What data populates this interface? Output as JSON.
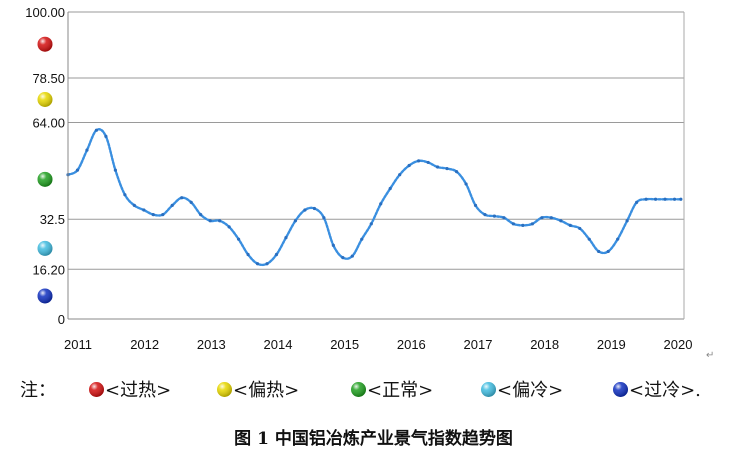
{
  "chart_data": {
    "type": "line",
    "title": "",
    "xlabel": "",
    "ylabel": "",
    "x_ticks": [
      "2011",
      "2012",
      "2013",
      "2014",
      "2015",
      "2016",
      "2017",
      "2018",
      "2019",
      "2020"
    ],
    "y_ticks": [
      {
        "value": 0,
        "label": "0"
      },
      {
        "value": 16.2,
        "label": "16.20"
      },
      {
        "value": 32.5,
        "label": "32.5"
      },
      {
        "value": 64.0,
        "label": "64.00"
      },
      {
        "value": 78.5,
        "label": "78.50"
      },
      {
        "value": 100.0,
        "label": "100.00"
      }
    ],
    "ylim": [
      0,
      100
    ],
    "xlim": [
      2011.0,
      2020.75
    ],
    "grid": true,
    "series": [
      {
        "name": "",
        "color": "#3A8FE0",
        "x": [
          2011.0,
          2011.15,
          2011.3,
          2011.45,
          2011.6,
          2011.75,
          2011.9,
          2012.05,
          2012.2,
          2012.35,
          2012.5,
          2012.65,
          2012.8,
          2012.95,
          2013.1,
          2013.25,
          2013.4,
          2013.55,
          2013.7,
          2013.85,
          2014.0,
          2014.15,
          2014.3,
          2014.45,
          2014.6,
          2014.75,
          2014.9,
          2015.05,
          2015.2,
          2015.35,
          2015.5,
          2015.65,
          2015.8,
          2015.95,
          2016.1,
          2016.25,
          2016.4,
          2016.55,
          2016.7,
          2016.85,
          2017.0,
          2017.15,
          2017.3,
          2017.45,
          2017.6,
          2017.75,
          2017.9,
          2018.05,
          2018.2,
          2018.35,
          2018.5,
          2018.65,
          2018.8,
          2018.95,
          2019.1,
          2019.25,
          2019.4,
          2019.55,
          2019.7,
          2019.85,
          2020.0,
          2020.15,
          2020.3,
          2020.45,
          2020.6,
          2020.7
        ],
        "values": [
          47.0,
          48.5,
          55.0,
          61.5,
          59.5,
          48.5,
          40.5,
          37.0,
          35.5,
          34.0,
          34.0,
          37.0,
          39.5,
          38.0,
          34.0,
          32.0,
          32.0,
          30.0,
          26.0,
          21.0,
          18.0,
          18.0,
          21.0,
          26.5,
          32.0,
          35.5,
          36.0,
          33.0,
          24.0,
          20.0,
          20.5,
          26.0,
          31.0,
          37.5,
          42.5,
          47.0,
          50.0,
          51.5,
          51.0,
          49.5,
          49.0,
          48.0,
          44.0,
          37.0,
          34.0,
          33.5,
          33.0,
          31.0,
          30.5,
          31.0,
          33.0,
          33.0,
          32.0,
          30.5,
          29.5,
          26.0,
          22.0,
          22.0,
          26.0,
          32.0,
          38.0,
          39.0,
          39.0,
          39.0,
          39.0,
          39.0
        ]
      }
    ],
    "markers": [
      {
        "color": "#D41010",
        "y": 89.5
      },
      {
        "color": "#E8D800",
        "y": 71.5
      },
      {
        "color": "#20A020",
        "y": 45.5
      },
      {
        "color": "#40BCE0",
        "y": 23.0
      },
      {
        "color": "#1030C0",
        "y": 7.5
      }
    ]
  },
  "legend": {
    "prefix": "注：",
    "items": [
      {
        "label": "<过热>",
        "color": "#D41010"
      },
      {
        "label": "<偏热>",
        "color": "#E8D800"
      },
      {
        "label": "<正常>",
        "color": "#20A020"
      },
      {
        "label": "<偏冷>",
        "color": "#40BCE0"
      },
      {
        "label": "<过冷>.",
        "color": "#1030C0"
      }
    ]
  },
  "caption": "图 1  中国铝冶炼产业景气指数趋势图"
}
